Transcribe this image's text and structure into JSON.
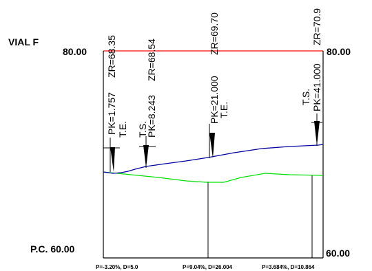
{
  "profile": {
    "title": "VIAL F",
    "datum_label": "P.C. 60.00",
    "top_left_label": "80.00",
    "top_right_label": "80.00",
    "bottom_right_label": "60.00",
    "colors": {
      "reference_line": "#ff0000",
      "design_line": "#0000a0",
      "terrain_line": "#00e000",
      "frame": "#000000"
    },
    "vertical_labels": [
      {
        "pk": "PK=1.757",
        "zr": "ZR=68.35",
        "aux": [
          "T.E."
        ]
      },
      {
        "pk": "PK=8.243",
        "zr": "ZR=68.54",
        "aux": [
          "T.S."
        ]
      },
      {
        "pk": "PK=21.000",
        "zr": "ZR=69.70",
        "aux": [
          "T.E."
        ]
      },
      {
        "pk": "PK=41.000",
        "zr": "ZR=70.9",
        "aux": [
          "T.S."
        ]
      }
    ],
    "slope_labels": [
      "P=-3.20%, D=5.0",
      "P=9.04%, D=26.004",
      "P=3.684%, D=10.864"
    ]
  }
}
